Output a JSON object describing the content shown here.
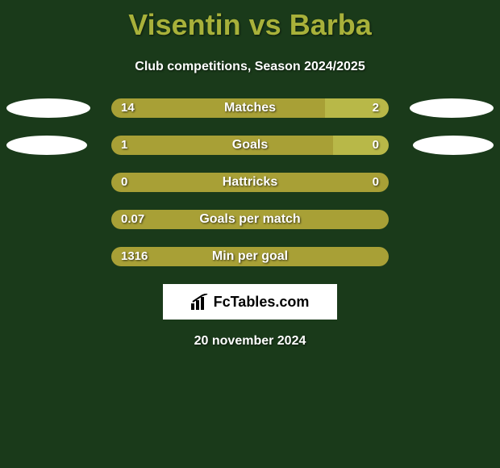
{
  "header": {
    "title": "Visentin vs Barba",
    "subtitle": "Club competitions, Season 2024/2025",
    "date": "20 november 2024"
  },
  "colors": {
    "background": "#1a3a1a",
    "title_color": "#a8b13a",
    "bar_left": "#a8a036",
    "bar_right": "#b8b848",
    "ellipse_color": "#ffffff",
    "text_color": "#ffffff"
  },
  "logo": {
    "text": "FcTables.com"
  },
  "stats": [
    {
      "label": "Matches",
      "left_value": "14",
      "right_value": "2",
      "left_pct": 77,
      "right_pct": 23,
      "ellipse_left_w": 104,
      "ellipse_right_w": 104,
      "show_ellipses": true
    },
    {
      "label": "Goals",
      "left_value": "1",
      "right_value": "0",
      "left_pct": 80,
      "right_pct": 20,
      "ellipse_left_w": 100,
      "ellipse_right_w": 100,
      "show_ellipses": true
    },
    {
      "label": "Hattricks",
      "left_value": "0",
      "right_value": "0",
      "left_pct": 100,
      "right_pct": 0,
      "show_ellipses": false
    },
    {
      "label": "Goals per match",
      "left_value": "0.07",
      "right_value": "",
      "left_pct": 100,
      "right_pct": 0,
      "show_ellipses": false
    },
    {
      "label": "Min per goal",
      "left_value": "1316",
      "right_value": "",
      "left_pct": 100,
      "right_pct": 0,
      "show_ellipses": false
    }
  ]
}
